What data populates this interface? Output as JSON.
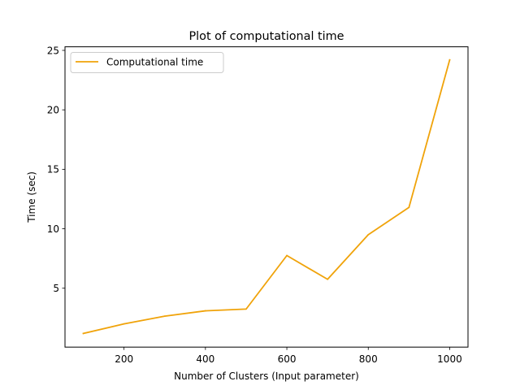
{
  "chart_data": {
    "type": "line",
    "title": "Plot of computational time",
    "xlabel": "Number of Clusters (Input parameter)",
    "ylabel": "Time (sec)",
    "xlim": [
      55,
      1045
    ],
    "ylim": [
      0.05,
      25.3
    ],
    "xticks": [
      200,
      400,
      600,
      800,
      1000
    ],
    "yticks": [
      5,
      10,
      15,
      20,
      25
    ],
    "grid": false,
    "legend_position": "top-left",
    "series": [
      {
        "name": "Computational time",
        "color": "#f0a30a",
        "x": [
          100,
          200,
          300,
          400,
          500,
          600,
          700,
          800,
          900,
          1000
        ],
        "y": [
          1.2,
          2.0,
          2.65,
          3.1,
          3.25,
          7.75,
          5.75,
          9.5,
          11.8,
          24.2
        ]
      }
    ]
  }
}
